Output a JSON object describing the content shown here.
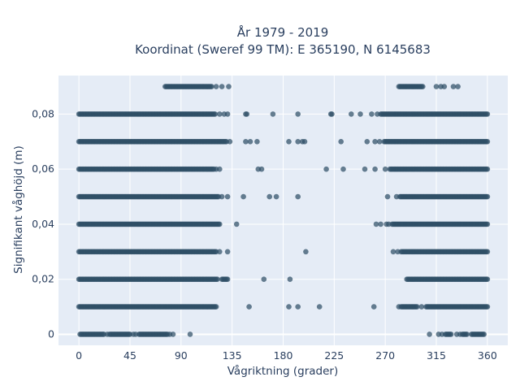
{
  "chart_data": {
    "type": "scatter",
    "title_line1": "År 1979 - 2019",
    "title_line2": "Koordinat (Sweref 99 TM): E 365190, N 6145683",
    "xlabel": "Vågriktning (grader)",
    "ylabel": "Signifikant våghöjd (m)",
    "xlim": [
      -18,
      378
    ],
    "ylim": [
      -0.004,
      0.094
    ],
    "x_ticks": [
      0,
      45,
      90,
      135,
      180,
      225,
      270,
      315,
      360
    ],
    "x_tick_labels": [
      "0",
      "45",
      "90",
      "135",
      "180",
      "225",
      "270",
      "315",
      "360"
    ],
    "y_ticks": [
      0,
      0.02,
      0.04,
      0.06,
      0.08
    ],
    "y_tick_labels": [
      "0",
      "0,02",
      "0,04",
      "0,06",
      "0,08"
    ],
    "grid": true,
    "colors": {
      "plot_bg": "#e5ecf6",
      "grid": "#ffffff",
      "marker": "#2f4f66"
    },
    "series": [
      {
        "bands": [
          {
            "y": 0.0,
            "segments": [
              [
                1,
                22
              ],
              [
                27,
                45
              ],
              [
                53,
                78
              ]
            ],
            "x": [
              25,
              48,
              50,
              80,
              83,
              98
            ]
          },
          {
            "y": 0.01,
            "segments": [
              [
                0,
                121
              ]
            ],
            "x": [
              150,
              185,
              193,
              212
            ]
          },
          {
            "y": 0.02,
            "segments": [
              [
                0,
                122
              ],
              [
                126,
                131
              ]
            ],
            "x": [
              163,
              186
            ]
          },
          {
            "y": 0.03,
            "segments": [
              [
                0,
                121
              ]
            ],
            "x": [
              124,
              131,
              200
            ]
          },
          {
            "y": 0.04,
            "segments": [
              [
                0,
                124
              ]
            ],
            "x": [
              139
            ]
          },
          {
            "y": 0.05,
            "segments": [
              [
                0,
                123
              ]
            ],
            "x": [
              126,
              131,
              145,
              168,
              174,
              193
            ]
          },
          {
            "y": 0.06,
            "segments": [
              [
                0,
                119
              ]
            ],
            "x": [
              121,
              124,
              158,
              161,
              218,
              233,
              252
            ]
          },
          {
            "y": 0.07,
            "segments": [
              [
                0,
                130
              ]
            ],
            "x": [
              133,
              147,
              151,
              157,
              185,
              193,
              197,
              199,
              231
            ]
          },
          {
            "y": 0.08,
            "segments": [
              [
                0,
                120
              ]
            ],
            "x": [
              124,
              128,
              131,
              147,
              148,
              171,
              193,
              222,
              223,
              240,
              248
            ]
          },
          {
            "y": 0.09,
            "segments": [
              [
                76,
                117
              ]
            ],
            "x": [
              121,
              126,
              132
            ]
          }
        ]
      },
      {
        "bands": [
          {
            "y": 0.0,
            "segments": [
              [
                323,
                328
              ],
              [
                338,
                342
              ],
              [
                346,
                357
              ]
            ],
            "x": [
              309,
              317,
              320,
              333,
              336
            ]
          },
          {
            "y": 0.01,
            "segments": [
              [
                284,
                298
              ],
              [
                306,
                360
              ]
            ],
            "x": [
              260,
              282,
              302
            ]
          },
          {
            "y": 0.02,
            "segments": [
              [
                289,
                360
              ]
            ],
            "x": []
          },
          {
            "y": 0.03,
            "segments": [
              [
                284,
                360
              ]
            ],
            "x": [
              277,
              281
            ]
          },
          {
            "y": 0.04,
            "segments": [
              [
                276,
                360
              ]
            ],
            "x": [
              262,
              266,
              271,
              273
            ]
          },
          {
            "y": 0.05,
            "segments": [
              [
                283,
                360
              ]
            ],
            "x": [
              272,
              280
            ]
          },
          {
            "y": 0.06,
            "segments": [
              [
                274,
                360
              ]
            ],
            "x": [
              261,
              270
            ]
          },
          {
            "y": 0.07,
            "segments": [
              [
                269,
                360
              ]
            ],
            "x": [
              254,
              261,
              265
            ]
          },
          {
            "y": 0.08,
            "segments": [
              [
                266,
                360
              ]
            ],
            "x": [
              258,
              263
            ]
          },
          {
            "y": 0.09,
            "segments": [
              [
                282,
                303
              ]
            ],
            "x": [
              315,
              319,
              322,
              330,
              334
            ]
          }
        ]
      }
    ]
  }
}
